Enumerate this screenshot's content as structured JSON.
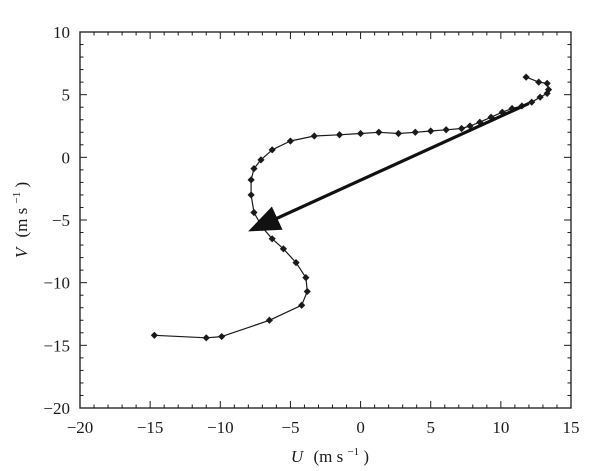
{
  "chart_data": {
    "type": "line",
    "title": "",
    "xlabel": {
      "symbol": "U",
      "units": "(m s",
      "exp": "−1",
      "close": ")"
    },
    "ylabel": {
      "symbol": "V",
      "units": "(m s",
      "exp": "−1",
      "close": ")"
    },
    "xlim": [
      -20,
      15
    ],
    "ylim": [
      -20,
      10
    ],
    "xticks": [
      -20,
      -15,
      -10,
      -5,
      0,
      5,
      10,
      15
    ],
    "yticks": [
      -20,
      -15,
      -10,
      -5,
      0,
      5,
      10
    ],
    "xtick_labels": [
      "−20",
      "−15",
      "−10",
      "−5",
      "0",
      "5",
      "10",
      "15"
    ],
    "ytick_labels": [
      "−20",
      "−15",
      "−10",
      "−5",
      "0",
      "5",
      "10"
    ],
    "grid": false,
    "series": [
      {
        "marker": "diamond",
        "color": "#1a1a1a",
        "x": [
          -14.7,
          -11.0,
          -9.9,
          -6.5,
          -4.2,
          -3.8,
          -3.9,
          -4.6,
          -5.5,
          -6.3,
          -7.0,
          -7.6,
          -7.8,
          -7.8,
          -7.6,
          -7.1,
          -6.3,
          -5.0,
          -3.3,
          -1.5,
          0.0,
          1.3,
          2.7,
          3.9,
          5.0,
          6.1,
          7.2,
          7.8,
          8.5,
          9.3,
          10.1,
          10.8,
          11.5,
          12.2,
          12.8,
          13.3,
          13.4,
          13.3,
          12.7,
          11.8
        ],
        "y": [
          -14.2,
          -14.4,
          -14.3,
          -13.0,
          -11.8,
          -10.7,
          -9.6,
          -8.4,
          -7.3,
          -6.5,
          -5.6,
          -4.4,
          -3.0,
          -1.8,
          -0.9,
          -0.2,
          0.6,
          1.3,
          1.7,
          1.8,
          1.9,
          2.0,
          1.9,
          2.0,
          2.1,
          2.2,
          2.3,
          2.5,
          2.8,
          3.2,
          3.6,
          3.9,
          4.1,
          4.4,
          4.8,
          5.1,
          5.4,
          5.9,
          6.0,
          6.4
        ]
      }
    ],
    "arrow": {
      "from": [
        12.0,
        4.3
      ],
      "to": [
        -7.6,
        -5.7
      ],
      "color": "#111111"
    }
  }
}
